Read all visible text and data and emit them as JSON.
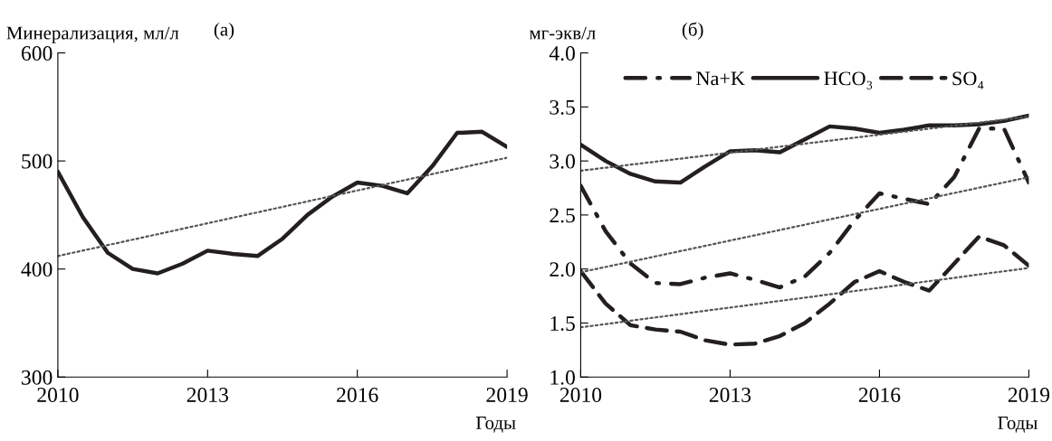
{
  "chart_data": [
    {
      "type": "line",
      "title": "(а)",
      "ylabel": "Минерализация, мл/л",
      "xlabel": "Годы",
      "xlim": [
        2010,
        2019
      ],
      "ylim": [
        300,
        600
      ],
      "xticks": [
        2010,
        2013,
        2016,
        2019
      ],
      "yticks": [
        300,
        400,
        500,
        600
      ],
      "grid": false,
      "legend": false,
      "marker": "none",
      "series": [
        {
          "color": "#231f20",
          "line_style": "solid",
          "x": [
            2010,
            2010.5,
            2011,
            2011.5,
            2012,
            2012.5,
            2013,
            2013.5,
            2014,
            2014.5,
            2015,
            2015.5,
            2016,
            2016.5,
            2017,
            2017.5,
            2018,
            2018.5,
            2019
          ],
          "values": [
            490,
            448,
            415,
            400,
            396,
            405,
            417,
            414,
            412,
            428,
            450,
            467,
            480,
            477,
            470,
            495,
            526,
            527,
            513
          ]
        },
        {
          "color": "#555555",
          "line_style": "dotted",
          "x": [
            2010,
            2019
          ],
          "values": [
            412,
            503
          ]
        }
      ]
    },
    {
      "type": "line",
      "title": "(б)",
      "ylabel": "мг-экв/л",
      "xlabel": "Годы",
      "xlim": [
        2010,
        2019
      ],
      "ylim": [
        1.0,
        4.0
      ],
      "xticks": [
        2010,
        2013,
        2016,
        2019
      ],
      "yticks": [
        {
          "value": 1.0,
          "label": "1.0"
        },
        {
          "value": 1.5,
          "label": "1.5"
        },
        {
          "value": 2.0,
          "label": "2.0"
        },
        {
          "value": 2.5,
          "label": "2.5"
        },
        {
          "value": 3.0,
          "label": "3.0"
        },
        {
          "value": 3.5,
          "label": "3.5"
        },
        {
          "value": 4.0,
          "label": "4.0"
        }
      ],
      "grid": false,
      "legend": "top",
      "marker": "none",
      "series": [
        {
          "name": "Na+K",
          "color": "#231f20",
          "line_style": "dashdot",
          "x": [
            2010,
            2010.5,
            2011,
            2011.5,
            2012,
            2012.5,
            2013,
            2013.5,
            2014,
            2014.5,
            2015,
            2015.5,
            2016,
            2016.5,
            2017,
            2017.5,
            2018,
            2018.5,
            2019
          ],
          "values": [
            2.77,
            2.35,
            2.05,
            1.87,
            1.86,
            1.92,
            1.96,
            1.9,
            1.83,
            1.93,
            2.15,
            2.45,
            2.7,
            2.65,
            2.6,
            2.85,
            3.3,
            3.3,
            2.8
          ]
        },
        {
          "name": "HCO₃",
          "color": "#231f20",
          "line_style": "solid",
          "x": [
            2010,
            2010.5,
            2011,
            2011.5,
            2012,
            2012.5,
            2013,
            2013.5,
            2014,
            2014.5,
            2015,
            2015.5,
            2016,
            2016.5,
            2017,
            2017.5,
            2018,
            2018.5,
            2019
          ],
          "values": [
            3.15,
            3.0,
            2.88,
            2.81,
            2.8,
            2.95,
            3.09,
            3.1,
            3.08,
            3.2,
            3.32,
            3.3,
            3.26,
            3.29,
            3.33,
            3.33,
            3.34,
            3.37,
            3.42
          ]
        },
        {
          "name": "SO₄",
          "color": "#231f20",
          "line_style": "dashed",
          "x": [
            2010,
            2010.5,
            2011,
            2011.5,
            2012,
            2012.5,
            2013,
            2013.5,
            2014,
            2014.5,
            2015,
            2015.5,
            2016,
            2016.5,
            2017,
            2017.5,
            2018,
            2018.5,
            2019
          ],
          "values": [
            1.98,
            1.68,
            1.48,
            1.44,
            1.42,
            1.34,
            1.3,
            1.31,
            1.38,
            1.5,
            1.68,
            1.88,
            1.98,
            1.88,
            1.8,
            2.05,
            2.3,
            2.22,
            2.03
          ]
        },
        {
          "color": "#555555",
          "line_style": "dotted",
          "x": [
            2010,
            2019
          ],
          "values": [
            2.91,
            3.41
          ]
        },
        {
          "color": "#555555",
          "line_style": "dotted",
          "x": [
            2010,
            2019
          ],
          "values": [
            1.97,
            2.85
          ]
        },
        {
          "color": "#555555",
          "line_style": "dotted",
          "x": [
            2010,
            2019
          ],
          "values": [
            1.46,
            2.01
          ]
        }
      ]
    }
  ]
}
